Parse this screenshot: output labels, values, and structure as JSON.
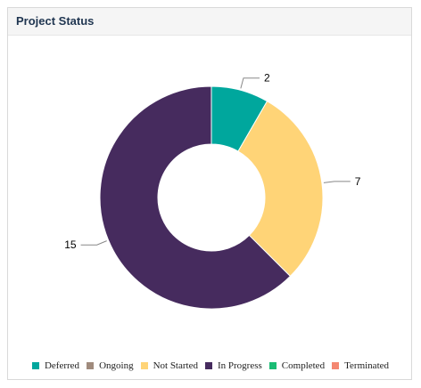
{
  "panel": {
    "title": "Project Status"
  },
  "chart_data": {
    "type": "pie",
    "donut": true,
    "categories": [
      "Deferred",
      "Ongoing",
      "Not Started",
      "In Progress",
      "Completed",
      "Terminated"
    ],
    "values": [
      2,
      0,
      7,
      15,
      0,
      0
    ],
    "colors": [
      "#00a79d",
      "#a08b7d",
      "#ffd477",
      "#462b5e",
      "#1abc74",
      "#f48771"
    ],
    "data_labels": [
      "2",
      "",
      "7",
      "15",
      "",
      ""
    ],
    "legend_position": "bottom"
  },
  "legend": [
    {
      "label": "Deferred",
      "color": "#00a79d"
    },
    {
      "label": "Ongoing",
      "color": "#a08b7d"
    },
    {
      "label": "Not Started",
      "color": "#ffd477"
    },
    {
      "label": "In Progress",
      "color": "#462b5e"
    },
    {
      "label": "Completed",
      "color": "#1abc74"
    },
    {
      "label": "Terminated",
      "color": "#f48771"
    }
  ]
}
